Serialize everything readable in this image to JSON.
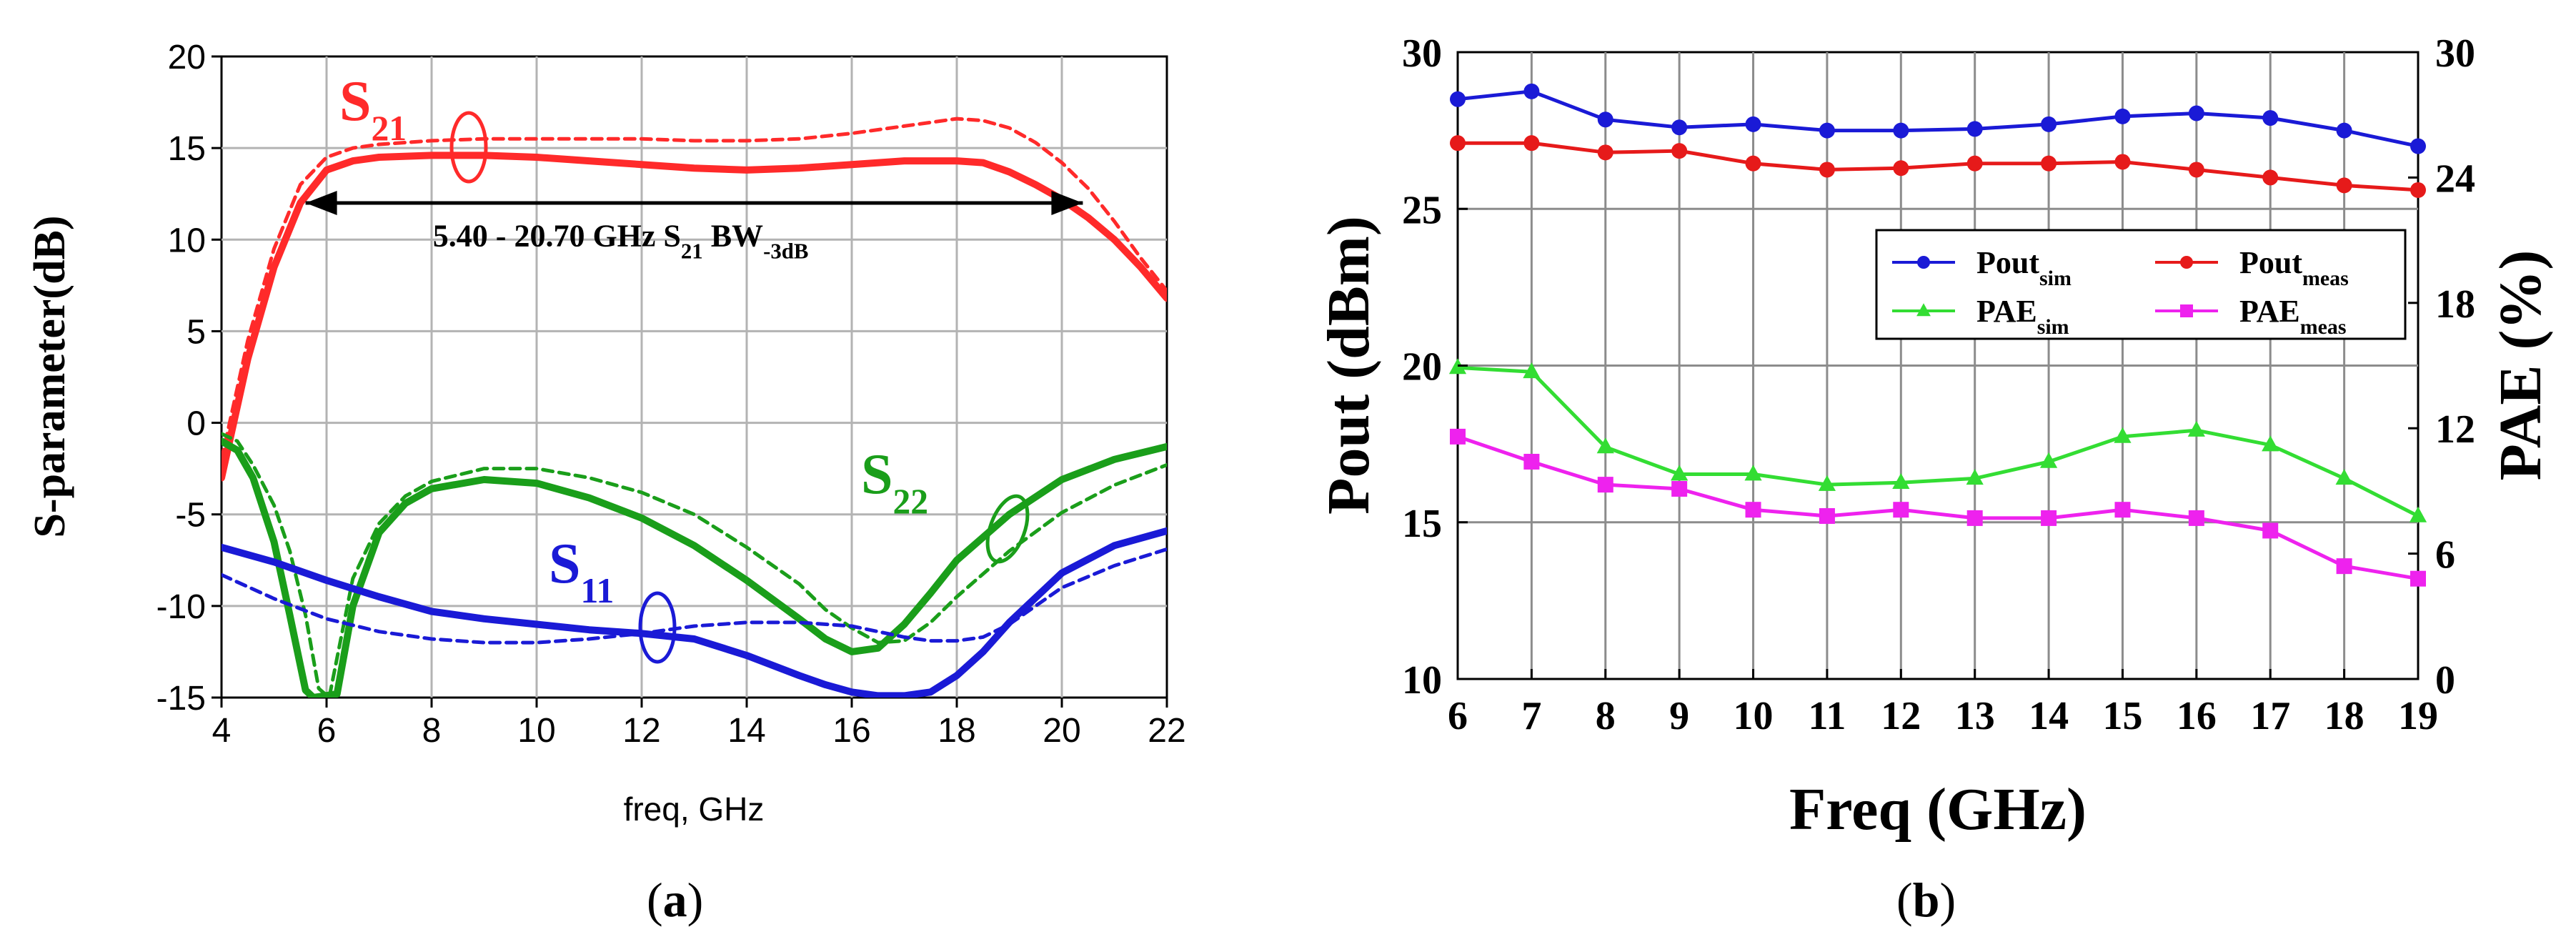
{
  "chart_data": [
    {
      "type": "line",
      "panel": "a",
      "caption": "a",
      "xlabel": "freq, GHz",
      "ylabel": "S-parameter(dB)",
      "xlim": [
        4,
        22
      ],
      "ylim": [
        -15,
        20
      ],
      "xticks": [
        4,
        6,
        8,
        10,
        12,
        14,
        16,
        18,
        20,
        22
      ],
      "yticks": [
        20,
        15,
        10,
        5,
        0,
        -5,
        -10,
        -15
      ],
      "grid": true,
      "annotation": {
        "text_main": "5.40 - 20.70 GHz S",
        "text_sub1": "21",
        "text_mid": " BW",
        "text_sub2": "-3dB",
        "x_range": [
          5.6,
          20.4
        ],
        "y": 12
      },
      "labels": [
        {
          "name": "S21",
          "main": "S",
          "sub": "21",
          "color": "#ff2a2a"
        },
        {
          "name": "S22",
          "main": "S",
          "sub": "22",
          "color": "#1a9e1a"
        },
        {
          "name": "S11",
          "main": "S",
          "sub": "11",
          "color": "#1a1ad6"
        }
      ],
      "series": [
        {
          "name": "S21 measured",
          "color": "#ff2a2a",
          "style": "solid",
          "x": [
            4,
            4.5,
            5,
            5.5,
            6,
            6.5,
            7,
            8,
            9,
            10,
            11,
            12,
            13,
            14,
            15,
            16,
            17,
            18,
            18.5,
            19,
            19.5,
            20,
            20.5,
            21,
            21.5,
            22
          ],
          "values": [
            -3,
            3.5,
            8.5,
            12,
            13.8,
            14.3,
            14.5,
            14.6,
            14.6,
            14.5,
            14.3,
            14.1,
            13.9,
            13.8,
            13.9,
            14.1,
            14.3,
            14.3,
            14.2,
            13.7,
            13,
            12.2,
            11.2,
            10,
            8.5,
            6.8
          ]
        },
        {
          "name": "S21 simulated",
          "color": "#ff2a2a",
          "style": "dashed",
          "x": [
            4,
            4.5,
            5,
            5.5,
            6,
            6.5,
            7,
            8,
            9,
            10,
            11,
            12,
            13,
            14,
            15,
            16,
            17,
            17.5,
            18,
            18.5,
            19,
            19.5,
            20,
            20.5,
            21,
            21.5,
            22
          ],
          "values": [
            -2,
            4.5,
            9.5,
            13,
            14.5,
            15,
            15.2,
            15.4,
            15.5,
            15.5,
            15.5,
            15.5,
            15.4,
            15.4,
            15.5,
            15.8,
            16.2,
            16.4,
            16.6,
            16.5,
            16.1,
            15.3,
            14.2,
            12.8,
            11,
            9,
            7.2
          ]
        },
        {
          "name": "S22 measured",
          "color": "#1a9e1a",
          "style": "solid",
          "x": [
            4,
            4.3,
            4.6,
            5,
            5.3,
            5.6,
            5.75,
            6.2,
            6.5,
            7,
            7.5,
            8,
            9,
            10,
            11,
            12,
            13,
            14,
            15,
            15.5,
            16,
            16.5,
            17,
            17.5,
            18,
            19,
            20,
            21,
            22
          ],
          "values": [
            -1,
            -1.5,
            -3,
            -6.5,
            -10.5,
            -14.6,
            -15,
            -14.8,
            -10,
            -6,
            -4.4,
            -3.6,
            -3.1,
            -3.3,
            -4.1,
            -5.2,
            -6.7,
            -8.6,
            -10.7,
            -11.8,
            -12.5,
            -12.3,
            -11,
            -9.3,
            -7.5,
            -5,
            -3.1,
            -2,
            -1.3
          ]
        },
        {
          "name": "S22 simulated",
          "color": "#1a9e1a",
          "style": "dashed",
          "x": [
            4,
            4.3,
            4.6,
            5,
            5.3,
            5.6,
            5.85,
            6.05,
            6.5,
            7,
            7.5,
            8,
            9,
            10,
            11,
            12,
            13,
            14,
            15,
            15.5,
            16,
            16.5,
            17,
            17.5,
            18,
            19,
            20,
            21,
            22
          ],
          "values": [
            -0.6,
            -1,
            -2.3,
            -4.5,
            -7,
            -10.5,
            -14.5,
            -15,
            -8.5,
            -5.5,
            -4,
            -3.2,
            -2.5,
            -2.5,
            -3,
            -3.8,
            -5,
            -6.8,
            -8.8,
            -10.2,
            -11.2,
            -12,
            -11.9,
            -10.9,
            -9.5,
            -7,
            -4.9,
            -3.4,
            -2.3
          ]
        },
        {
          "name": "S11 measured",
          "color": "#1a1ad6",
          "style": "solid",
          "x": [
            4,
            5,
            6,
            7,
            8,
            9,
            10,
            11,
            12,
            13,
            14,
            15,
            15.5,
            16,
            16.5,
            17,
            17.5,
            18,
            18.5,
            19,
            20,
            21,
            22
          ],
          "values": [
            -6.8,
            -7.6,
            -8.6,
            -9.5,
            -10.3,
            -10.7,
            -11,
            -11.3,
            -11.5,
            -11.8,
            -12.7,
            -13.8,
            -14.3,
            -14.7,
            -14.9,
            -14.9,
            -14.7,
            -13.8,
            -12.5,
            -10.9,
            -8.2,
            -6.7,
            -5.9
          ]
        },
        {
          "name": "S11 simulated",
          "color": "#1a1ad6",
          "style": "dashed",
          "x": [
            4,
            5,
            6,
            7,
            8,
            9,
            10,
            11,
            12,
            13,
            14,
            15,
            16,
            16.5,
            17,
            17.5,
            18,
            18.5,
            19,
            20,
            21,
            22
          ],
          "values": [
            -8.3,
            -9.6,
            -10.7,
            -11.4,
            -11.8,
            -12,
            -12,
            -11.8,
            -11.5,
            -11.1,
            -10.9,
            -10.9,
            -11.1,
            -11.4,
            -11.7,
            -11.9,
            -11.9,
            -11.7,
            -11,
            -9,
            -7.8,
            -6.9
          ]
        }
      ]
    },
    {
      "type": "line",
      "panel": "b",
      "caption": "b",
      "xlabel": "Freq (GHz)",
      "ylabel": "Pout (dBm)",
      "y2label": "PAE (%)",
      "xlim": [
        6,
        19
      ],
      "ylim": [
        10,
        30
      ],
      "y2lim": [
        0,
        30
      ],
      "xticks": [
        6,
        7,
        8,
        9,
        10,
        11,
        12,
        13,
        14,
        15,
        16,
        17,
        18,
        19
      ],
      "yticks": [
        30,
        25,
        20,
        15,
        10
      ],
      "y2ticks": [
        30,
        24,
        18,
        12,
        6,
        0
      ],
      "grid": true,
      "legend_position": "top-right",
      "x": [
        6,
        7,
        8,
        9,
        10,
        11,
        12,
        13,
        14,
        15,
        16,
        17,
        18,
        19
      ],
      "series": [
        {
          "name": "Pout_sim",
          "main": "Pout",
          "sub": "sim",
          "axis": "left",
          "marker": "circle",
          "color": "#1a1ad6",
          "values": [
            28.5,
            28.75,
            27.85,
            27.6,
            27.7,
            27.5,
            27.5,
            27.55,
            27.7,
            27.95,
            28.05,
            27.9,
            27.5,
            27.0
          ]
        },
        {
          "name": "Pout_meas",
          "main": "Pout",
          "sub": "meas",
          "axis": "left",
          "marker": "circle",
          "color": "#e61a1a",
          "values": [
            27.1,
            27.1,
            26.8,
            26.85,
            26.45,
            26.25,
            26.3,
            26.45,
            26.45,
            26.5,
            26.25,
            26.0,
            25.75,
            25.6
          ]
        },
        {
          "name": "PAE_sim",
          "main": "PAE",
          "sub": "sim",
          "axis": "right",
          "marker": "triangle",
          "color": "#33dd33",
          "values": [
            14.9,
            14.7,
            11.1,
            9.8,
            9.8,
            9.3,
            9.4,
            9.6,
            10.4,
            11.6,
            11.9,
            11.2,
            9.6,
            7.8
          ]
        },
        {
          "name": "PAE_meas",
          "main": "PAE",
          "sub": "meas",
          "axis": "right",
          "marker": "square",
          "color": "#ee22ee",
          "values": [
            11.6,
            10.4,
            9.3,
            9.1,
            8.1,
            7.8,
            8.1,
            7.7,
            7.7,
            8.1,
            7.7,
            7.1,
            5.4,
            4.8
          ]
        }
      ]
    }
  ]
}
